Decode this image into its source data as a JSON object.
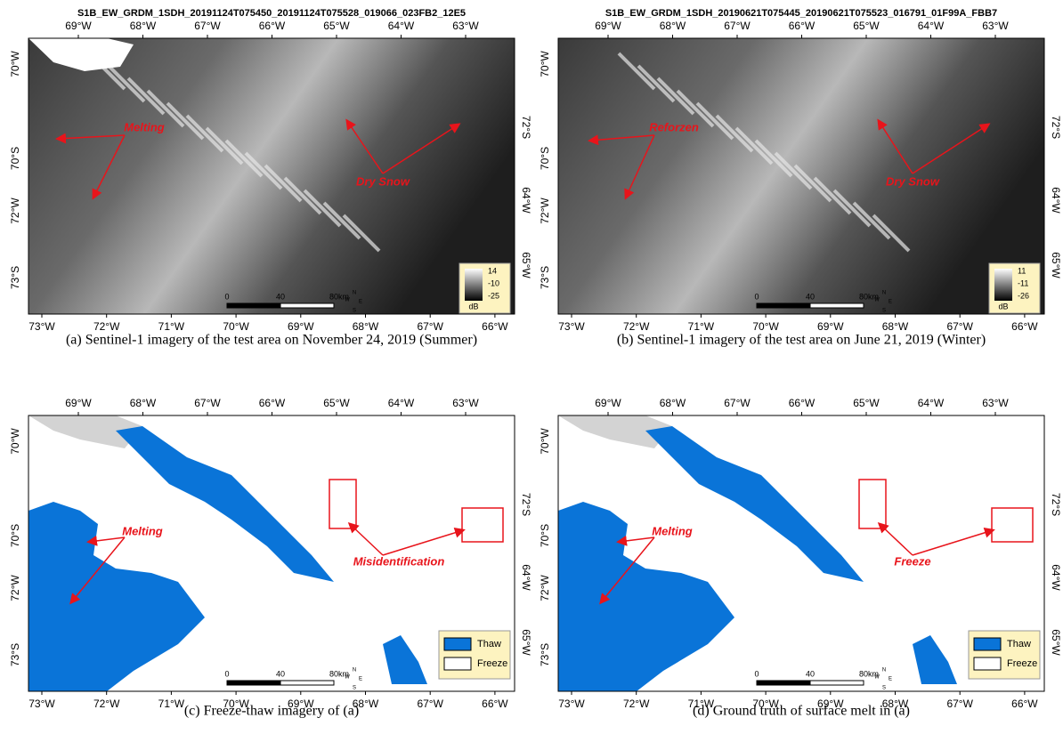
{
  "panels": [
    {
      "header": "S1B_EW_GRDM_1SDH_20191124T075450_20191124T075528_019066_023FB2_12E5",
      "top_ticks": [
        "69°W",
        "68°W",
        "67°W",
        "66°W",
        "65°W",
        "64°W",
        "63°W"
      ],
      "bottom_ticks": [
        "73°W",
        "72°W",
        "71°W",
        "70°W",
        "69°W",
        "68°W",
        "67°W",
        "66°W"
      ],
      "left_ticks": [
        "70°W",
        "70°S",
        "72°W",
        "73°S"
      ],
      "right_ticks": [
        "72°S",
        "64°W",
        "65°W"
      ],
      "annotations": [
        "Melting",
        "Dry Snow"
      ],
      "legend": {
        "labels": [
          "14",
          "-10",
          "-25"
        ],
        "unit": "dB"
      },
      "scale": {
        "labels": [
          "0",
          "40",
          "80"
        ],
        "unit": "km"
      },
      "compass": [
        "N",
        "E",
        "S",
        "W"
      ],
      "caption": "(a)  Sentinel-1 imagery of the test area on November 24, 2019 (Summer)"
    },
    {
      "header": "S1B_EW_GRDM_1SDH_20190621T075445_20190621T075523_016791_01F99A_FBB7",
      "top_ticks": [
        "69°W",
        "68°W",
        "67°W",
        "66°W",
        "65°W",
        "64°W",
        "63°W"
      ],
      "bottom_ticks": [
        "73°W",
        "72°W",
        "71°W",
        "70°W",
        "69°W",
        "68°W",
        "67°W",
        "66°W"
      ],
      "left_ticks": [
        "70°W",
        "70°S",
        "72°W",
        "73°S"
      ],
      "right_ticks": [
        "72°S",
        "64°W",
        "65°W"
      ],
      "annotations": [
        "Reforzen",
        "Dry Snow"
      ],
      "legend": {
        "labels": [
          "11",
          "-11",
          "-26"
        ],
        "unit": "dB"
      },
      "scale": {
        "labels": [
          "0",
          "40",
          "80"
        ],
        "unit": "km"
      },
      "compass": [
        "N",
        "E",
        "S",
        "W"
      ],
      "caption": "(b)  Sentinel-1 imagery of the test area on June 21, 2019 (Winter)"
    },
    {
      "top_ticks": [
        "69°W",
        "68°W",
        "67°W",
        "66°W",
        "65°W",
        "64°W",
        "63°W"
      ],
      "bottom_ticks": [
        "73°W",
        "72°W",
        "71°W",
        "70°W",
        "69°W",
        "68°W",
        "67°W",
        "66°W"
      ],
      "left_ticks": [
        "70°W",
        "70°S",
        "72°W",
        "73°S"
      ],
      "right_ticks": [
        "72°S",
        "64°W",
        "65°W"
      ],
      "annotations": [
        "Melting",
        "Misidentification"
      ],
      "legend": {
        "items": [
          "Thaw",
          "Freeze"
        ]
      },
      "scale": {
        "labels": [
          "0",
          "40",
          "80"
        ],
        "unit": "km"
      },
      "compass": [
        "N",
        "E",
        "S",
        "W"
      ],
      "caption": "(c)  Freeze-thaw imagery of (a)"
    },
    {
      "top_ticks": [
        "69°W",
        "68°W",
        "67°W",
        "66°W",
        "65°W",
        "64°W",
        "63°W"
      ],
      "bottom_ticks": [
        "73°W",
        "72°W",
        "71°W",
        "70°W",
        "69°W",
        "68°W",
        "67°W",
        "66°W"
      ],
      "left_ticks": [
        "70°W",
        "70°S",
        "72°W",
        "73°S"
      ],
      "right_ticks": [
        "72°S",
        "64°W",
        "65°W"
      ],
      "annotations": [
        "Melting",
        "Freeze"
      ],
      "legend": {
        "items": [
          "Thaw",
          "Freeze"
        ]
      },
      "scale": {
        "labels": [
          "0",
          "40",
          "80"
        ],
        "unit": "km"
      },
      "compass": [
        "N",
        "E",
        "S",
        "W"
      ],
      "caption": "(d)  Ground truth of surface melt in (a)"
    }
  ]
}
